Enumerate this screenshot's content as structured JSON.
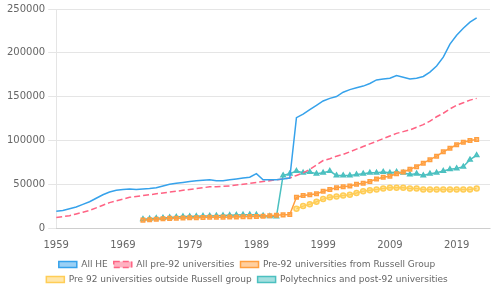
{
  "chart_data": {
    "type": "line",
    "xlim": [
      1959,
      2024
    ],
    "xticks": [
      1959,
      1969,
      1979,
      1989,
      1999,
      2009,
      2019
    ],
    "ylim": [
      0,
      250000
    ],
    "yticks": [
      0,
      50000,
      100000,
      150000,
      200000,
      250000
    ],
    "grid": "y",
    "legend": "bottom",
    "series": [
      {
        "name": "All HE",
        "line_style": "solid",
        "marker": "none",
        "x": [
          1959,
          1960,
          1961,
          1962,
          1963,
          1964,
          1965,
          1966,
          1967,
          1968,
          1969,
          1970,
          1971,
          1972,
          1973,
          1974,
          1975,
          1976,
          1977,
          1978,
          1979,
          1980,
          1981,
          1982,
          1983,
          1984,
          1985,
          1986,
          1987,
          1988,
          1989,
          1990,
          1991,
          1992,
          1993,
          1994,
          1995,
          1996,
          1997,
          1998,
          1999,
          2000,
          2001,
          2002,
          2003,
          2004,
          2005,
          2006,
          2007,
          2008,
          2009,
          2010,
          2011,
          2012,
          2013,
          2014,
          2015,
          2016,
          2017,
          2018,
          2019,
          2020,
          2021,
          2022
        ],
        "values": [
          19000,
          20000,
          22000,
          24000,
          27000,
          30000,
          34000,
          38000,
          41000,
          43000,
          44000,
          44500,
          44000,
          44500,
          45000,
          46000,
          48000,
          50000,
          51000,
          52000,
          53000,
          54000,
          54500,
          55000,
          54000,
          54000,
          55000,
          56000,
          57000,
          58000,
          62000,
          55000,
          55000,
          55000,
          56000,
          57000,
          126000,
          130000,
          135000,
          140000,
          145000,
          148000,
          150000,
          155000,
          158000,
          160000,
          162000,
          165000,
          169000,
          170000,
          171000,
          174000,
          172000,
          170000,
          171000,
          173000,
          178000,
          185000,
          195000,
          210000,
          220000,
          228000,
          235000,
          240000
        ]
      },
      {
        "name": "All pre-92 universities",
        "line_style": "dashed",
        "marker": "none",
        "x": [
          1959,
          1960,
          1961,
          1962,
          1963,
          1964,
          1965,
          1966,
          1967,
          1968,
          1969,
          1970,
          1971,
          1972,
          1973,
          1974,
          1975,
          1976,
          1977,
          1978,
          1979,
          1980,
          1981,
          1982,
          1983,
          1984,
          1985,
          1986,
          1987,
          1988,
          1989,
          1990,
          1991,
          1992,
          1993,
          1994,
          1995,
          1996,
          1997,
          1998,
          1999,
          2000,
          2001,
          2002,
          2003,
          2004,
          2005,
          2006,
          2007,
          2008,
          2009,
          2010,
          2011,
          2012,
          2013,
          2014,
          2015,
          2016,
          2017,
          2018,
          2019,
          2020,
          2021,
          2022
        ],
        "values": [
          12000,
          13000,
          14000,
          16000,
          18000,
          20000,
          23000,
          26000,
          29000,
          31000,
          33000,
          35000,
          36000,
          37000,
          38000,
          39000,
          40000,
          41000,
          42000,
          43000,
          44000,
          45000,
          46000,
          47000,
          47000,
          47500,
          48000,
          49000,
          50000,
          51000,
          52000,
          53000,
          54000,
          55000,
          56000,
          57000,
          60000,
          63000,
          67000,
          72000,
          77000,
          79000,
          82000,
          84000,
          87000,
          90000,
          93000,
          96000,
          99000,
          102000,
          105000,
          108000,
          110000,
          112000,
          115000,
          118000,
          122000,
          127000,
          131000,
          136000,
          140000,
          143000,
          146000,
          148000
        ]
      },
      {
        "name": "Pre-92 universities from Russell Group",
        "line_style": "solid",
        "marker": "square",
        "x": [
          1972,
          1973,
          1974,
          1975,
          1976,
          1977,
          1978,
          1979,
          1980,
          1981,
          1982,
          1983,
          1984,
          1985,
          1986,
          1987,
          1988,
          1989,
          1990,
          1991,
          1992,
          1993,
          1994,
          1995,
          1996,
          1997,
          1998,
          1999,
          2000,
          2001,
          2002,
          2003,
          2004,
          2005,
          2006,
          2007,
          2008,
          2009,
          2010,
          2011,
          2012,
          2013,
          2014,
          2015,
          2016,
          2017,
          2018,
          2019,
          2020,
          2021,
          2022
        ],
        "values": [
          9000,
          9500,
          10000,
          10500,
          11000,
          11200,
          11400,
          11600,
          11800,
          12000,
          12200,
          12300,
          12400,
          12500,
          12600,
          12800,
          13000,
          13200,
          13500,
          14000,
          14500,
          15000,
          15500,
          35000,
          37000,
          38000,
          39000,
          42000,
          44000,
          46000,
          47000,
          48000,
          50000,
          51000,
          53000,
          56000,
          58000,
          59000,
          62000,
          64000,
          67000,
          70000,
          74000,
          78000,
          82000,
          87000,
          91000,
          95000,
          98000,
          100000,
          101000
        ]
      },
      {
        "name": "Pre 92 universities outside Russell group",
        "line_style": "solid",
        "marker": "circle",
        "x": [
          1995,
          1996,
          1997,
          1998,
          1999,
          2000,
          2001,
          2002,
          2003,
          2004,
          2005,
          2006,
          2007,
          2008,
          2009,
          2010,
          2011,
          2012,
          2013,
          2014,
          2015,
          2016,
          2017,
          2018,
          2019,
          2020,
          2021,
          2022
        ],
        "values": [
          22000,
          25000,
          27000,
          30000,
          33000,
          35000,
          36000,
          37000,
          38000,
          40000,
          42000,
          43000,
          44000,
          45000,
          46000,
          46000,
          46000,
          45000,
          45000,
          44000,
          44000,
          44000,
          44000,
          44000,
          44000,
          44000,
          44000,
          45000
        ]
      },
      {
        "name": "Polytechnics and post-92 universities",
        "line_style": "solid",
        "marker": "triangle",
        "x": [
          1972,
          1973,
          1974,
          1975,
          1976,
          1977,
          1978,
          1979,
          1980,
          1981,
          1982,
          1983,
          1984,
          1985,
          1986,
          1987,
          1988,
          1989,
          1990,
          1991,
          1992,
          1993,
          1994,
          1995,
          1996,
          1997,
          1998,
          1999,
          2000,
          2001,
          2002,
          2003,
          2004,
          2005,
          2006,
          2007,
          2008,
          2009,
          2010,
          2011,
          2012,
          2013,
          2014,
          2015,
          2016,
          2017,
          2018,
          2019,
          2020,
          2021,
          2022
        ],
        "values": [
          10000,
          10500,
          11000,
          11500,
          12000,
          12500,
          13000,
          13200,
          13400,
          13600,
          13800,
          14000,
          14200,
          14500,
          14800,
          15000,
          15200,
          15000,
          14000,
          13500,
          13000,
          60000,
          62000,
          65000,
          63000,
          64000,
          62000,
          63000,
          65000,
          60000,
          60000,
          60000,
          61000,
          62000,
          63000,
          63000,
          64000,
          63000,
          64000,
          63000,
          61000,
          62000,
          60000,
          62000,
          63000,
          65000,
          67000,
          68000,
          70000,
          78000,
          83000
        ]
      }
    ]
  }
}
